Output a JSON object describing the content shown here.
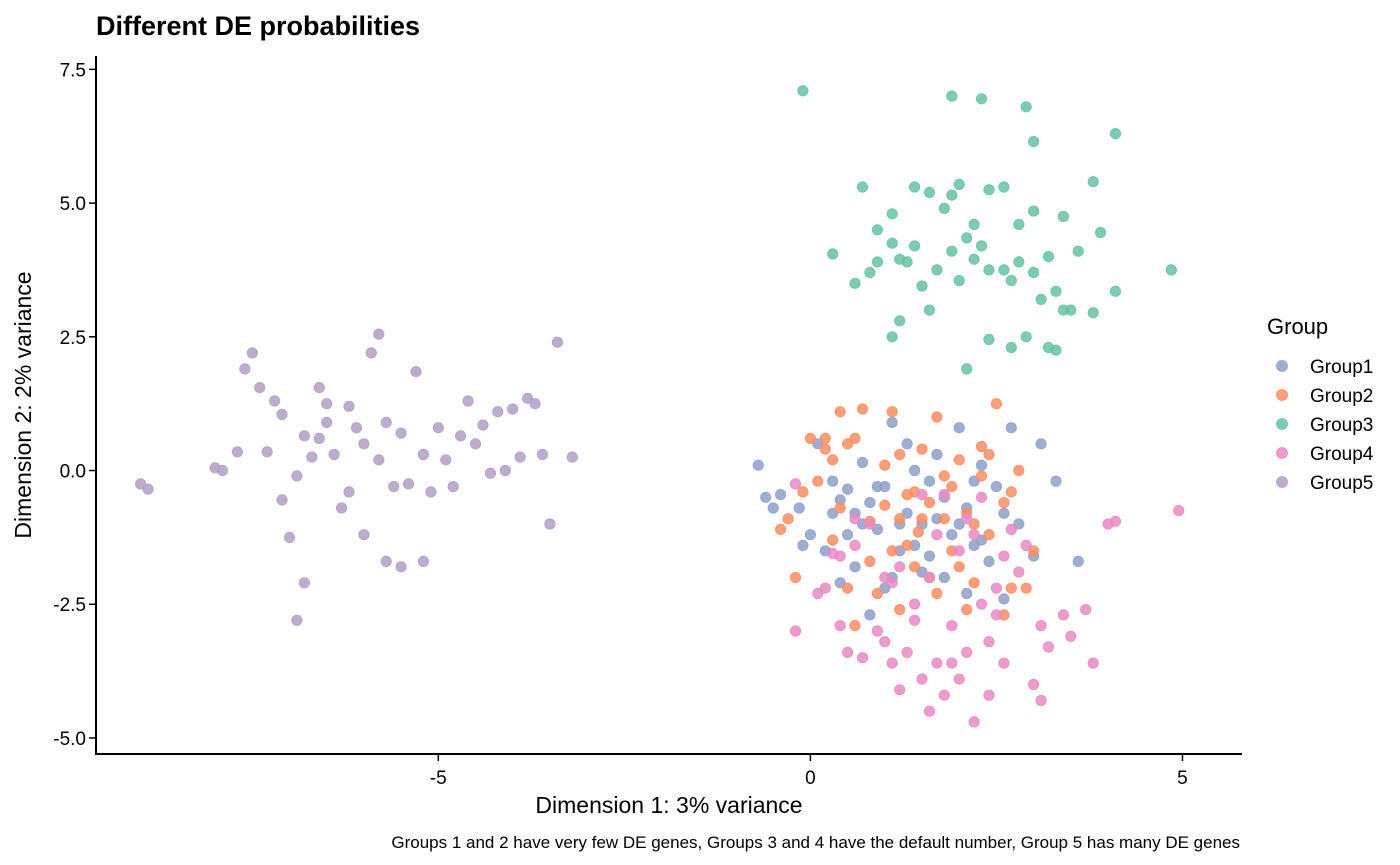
{
  "chart_data": {
    "type": "scatter",
    "title": "Different DE probabilities",
    "xlabel": "Dimension 1: 3% variance",
    "ylabel": "Dimension 2: 2% variance",
    "caption": "Groups 1 and 2 have very few DE genes, Groups 3 and 4 have the default number, Group 5 has many DE genes",
    "xlim": [
      -9.6,
      5.8
    ],
    "ylim": [
      -5.3,
      7.75
    ],
    "x_ticks": [
      -5,
      0,
      5
    ],
    "x_tick_labels": [
      "-5",
      "0",
      "5"
    ],
    "y_ticks": [
      -5,
      -2.5,
      0,
      2.5,
      5,
      7.5
    ],
    "y_tick_labels": [
      "-5.0",
      "-2.5",
      "0.0",
      "2.5",
      "5.0",
      "7.5"
    ],
    "grid": false,
    "legend_title": "Group",
    "legend_position": "right",
    "series": [
      {
        "name": "Group1",
        "color": "#8DA0CB",
        "points": [
          [
            -0.7,
            0.1
          ],
          [
            -0.5,
            -0.7
          ],
          [
            -0.4,
            -0.45
          ],
          [
            -0.15,
            -0.7
          ],
          [
            0.1,
            0.5
          ],
          [
            0.3,
            -0.2
          ],
          [
            0.4,
            -0.55
          ],
          [
            0.5,
            -1.2
          ],
          [
            0.6,
            -0.8
          ],
          [
            0.7,
            0.15
          ],
          [
            0.8,
            -0.6
          ],
          [
            0.9,
            -1.1
          ],
          [
            1.0,
            -0.3
          ],
          [
            1.1,
            0.9
          ],
          [
            1.2,
            -1.5
          ],
          [
            1.3,
            -0.8
          ],
          [
            1.4,
            0.0
          ],
          [
            1.5,
            -1.0
          ],
          [
            1.6,
            -1.6
          ],
          [
            1.7,
            0.3
          ],
          [
            1.8,
            -0.5
          ],
          [
            1.9,
            -1.2
          ],
          [
            2.0,
            0.8
          ],
          [
            2.1,
            -0.7
          ],
          [
            2.2,
            -1.4
          ],
          [
            2.3,
            0.1
          ],
          [
            2.4,
            -1.7
          ],
          [
            2.5,
            -0.3
          ],
          [
            2.6,
            -2.4
          ],
          [
            2.7,
            0.8
          ],
          [
            2.8,
            -1.0
          ],
          [
            3.0,
            -1.6
          ],
          [
            3.1,
            0.5
          ],
          [
            3.3,
            -0.2
          ],
          [
            3.6,
            -1.7
          ],
          [
            0.2,
            -1.5
          ],
          [
            0.4,
            -2.1
          ],
          [
            0.6,
            -1.8
          ],
          [
            0.8,
            -2.7
          ],
          [
            1.0,
            -2.2
          ],
          [
            1.2,
            -1.0
          ],
          [
            1.4,
            -1.4
          ],
          [
            1.6,
            -0.2
          ],
          [
            1.8,
            -2.0
          ],
          [
            2.0,
            -1.0
          ],
          [
            2.2,
            -0.2
          ],
          [
            -0.6,
            -0.5
          ],
          [
            0.0,
            -1.2
          ],
          [
            0.3,
            -0.8
          ],
          [
            0.9,
            -0.3
          ],
          [
            1.3,
            0.5
          ],
          [
            1.7,
            -0.9
          ],
          [
            2.1,
            -2.3
          ],
          [
            2.6,
            -0.8
          ],
          [
            0.5,
            -0.35
          ],
          [
            1.1,
            -2.0
          ],
          [
            1.5,
            -1.9
          ],
          [
            2.3,
            -1.3
          ],
          [
            0.7,
            -1.0
          ],
          [
            -0.1,
            -1.4
          ]
        ]
      },
      {
        "name": "Group2",
        "color": "#FC8D62",
        "points": [
          [
            -0.4,
            -1.1
          ],
          [
            -0.3,
            -0.9
          ],
          [
            -0.1,
            -0.4
          ],
          [
            0.0,
            0.6
          ],
          [
            0.2,
            0.6
          ],
          [
            0.4,
            1.1
          ],
          [
            0.5,
            0.5
          ],
          [
            0.7,
            1.15
          ],
          [
            0.8,
            -0.95
          ],
          [
            1.0,
            0.1
          ],
          [
            1.1,
            1.1
          ],
          [
            1.2,
            -0.9
          ],
          [
            1.3,
            -1.4
          ],
          [
            1.4,
            -0.4
          ],
          [
            1.5,
            0.4
          ],
          [
            1.6,
            -2.0
          ],
          [
            1.7,
            1.0
          ],
          [
            1.8,
            -0.1
          ],
          [
            1.9,
            -1.5
          ],
          [
            2.0,
            0.2
          ],
          [
            2.1,
            -0.8
          ],
          [
            2.2,
            -2.1
          ],
          [
            2.3,
            0.45
          ],
          [
            2.4,
            -1.2
          ],
          [
            2.5,
            1.25
          ],
          [
            2.6,
            -0.6
          ],
          [
            2.7,
            -2.2
          ],
          [
            2.8,
            0.0
          ],
          [
            3.0,
            -1.5
          ],
          [
            -0.2,
            -2.0
          ],
          [
            0.3,
            -1.3
          ],
          [
            0.5,
            -2.2
          ],
          [
            0.6,
            -2.9
          ],
          [
            0.9,
            -2.3
          ],
          [
            1.1,
            -1.5
          ],
          [
            1.2,
            -2.6
          ],
          [
            1.4,
            -1.8
          ],
          [
            1.5,
            -0.9
          ],
          [
            1.7,
            -2.3
          ],
          [
            1.8,
            -0.9
          ],
          [
            2.0,
            -1.8
          ],
          [
            2.2,
            -1.0
          ],
          [
            2.4,
            0.3
          ],
          [
            2.6,
            -2.7
          ],
          [
            2.9,
            -2.2
          ],
          [
            0.1,
            -0.2
          ],
          [
            0.4,
            -0.7
          ],
          [
            0.8,
            -1.7
          ],
          [
            1.0,
            -0.65
          ],
          [
            1.3,
            -0.45
          ],
          [
            1.6,
            -0.6
          ],
          [
            1.9,
            -0.3
          ],
          [
            2.1,
            -2.6
          ],
          [
            0.2,
            0.4
          ],
          [
            0.6,
            0.6
          ],
          [
            1.2,
            0.3
          ],
          [
            2.3,
            -0.1
          ],
          [
            2.7,
            -0.4
          ],
          [
            0.3,
            0.2
          ],
          [
            1.45,
            -1.15
          ]
        ]
      },
      {
        "name": "Group3",
        "color": "#66C2A5",
        "points": [
          [
            -0.1,
            7.1
          ],
          [
            1.9,
            7.0
          ],
          [
            2.3,
            6.95
          ],
          [
            2.9,
            6.8
          ],
          [
            3.0,
            6.15
          ],
          [
            4.1,
            6.3
          ],
          [
            0.7,
            5.3
          ],
          [
            1.1,
            4.8
          ],
          [
            1.4,
            5.3
          ],
          [
            1.6,
            5.2
          ],
          [
            1.8,
            4.9
          ],
          [
            1.9,
            5.15
          ],
          [
            2.0,
            5.35
          ],
          [
            2.2,
            4.6
          ],
          [
            2.4,
            5.25
          ],
          [
            2.6,
            5.3
          ],
          [
            2.8,
            4.6
          ],
          [
            3.0,
            4.85
          ],
          [
            3.4,
            4.75
          ],
          [
            3.8,
            5.4
          ],
          [
            0.3,
            4.05
          ],
          [
            0.6,
            3.5
          ],
          [
            0.8,
            3.7
          ],
          [
            0.9,
            3.9
          ],
          [
            1.1,
            4.25
          ],
          [
            1.2,
            3.95
          ],
          [
            1.3,
            3.9
          ],
          [
            1.4,
            4.2
          ],
          [
            1.5,
            3.45
          ],
          [
            1.7,
            3.75
          ],
          [
            1.9,
            4.1
          ],
          [
            2.0,
            3.55
          ],
          [
            2.1,
            4.35
          ],
          [
            2.2,
            3.95
          ],
          [
            2.3,
            4.2
          ],
          [
            2.4,
            3.75
          ],
          [
            2.6,
            3.75
          ],
          [
            2.7,
            3.55
          ],
          [
            2.8,
            3.9
          ],
          [
            3.0,
            3.7
          ],
          [
            3.1,
            3.2
          ],
          [
            3.2,
            4.0
          ],
          [
            3.3,
            3.35
          ],
          [
            3.4,
            3.0
          ],
          [
            3.5,
            3.0
          ],
          [
            3.6,
            4.1
          ],
          [
            3.8,
            2.95
          ],
          [
            3.9,
            4.45
          ],
          [
            4.1,
            3.35
          ],
          [
            4.85,
            3.75
          ],
          [
            1.2,
            2.8
          ],
          [
            1.6,
            3.0
          ],
          [
            2.1,
            1.9
          ],
          [
            2.4,
            2.45
          ],
          [
            2.7,
            2.3
          ],
          [
            2.9,
            2.5
          ],
          [
            3.2,
            2.3
          ],
          [
            3.3,
            2.25
          ],
          [
            1.1,
            2.5
          ],
          [
            0.9,
            4.5
          ]
        ]
      },
      {
        "name": "Group4",
        "color": "#E78AC3",
        "points": [
          [
            -0.2,
            -0.25
          ],
          [
            0.1,
            -2.3
          ],
          [
            0.4,
            -1.6
          ],
          [
            0.6,
            -1.4
          ],
          [
            0.8,
            -1.0
          ],
          [
            1.0,
            -3.2
          ],
          [
            1.1,
            -2.1
          ],
          [
            1.2,
            -4.1
          ],
          [
            1.3,
            -3.4
          ],
          [
            1.4,
            -2.8
          ],
          [
            1.5,
            -3.9
          ],
          [
            1.6,
            -4.5
          ],
          [
            1.7,
            -3.6
          ],
          [
            1.8,
            -4.2
          ],
          [
            1.9,
            -2.9
          ],
          [
            2.0,
            -3.9
          ],
          [
            2.1,
            -3.4
          ],
          [
            2.2,
            -4.7
          ],
          [
            2.3,
            -2.5
          ],
          [
            2.4,
            -3.2
          ],
          [
            2.5,
            -2.7
          ],
          [
            2.6,
            -3.6
          ],
          [
            2.7,
            -1.1
          ],
          [
            2.8,
            -1.9
          ],
          [
            3.0,
            -4.0
          ],
          [
            3.1,
            -4.3
          ],
          [
            3.2,
            -3.3
          ],
          [
            3.4,
            -2.7
          ],
          [
            3.7,
            -2.6
          ],
          [
            3.8,
            -3.6
          ],
          [
            4.0,
            -1.0
          ],
          [
            4.1,
            -0.95
          ],
          [
            4.95,
            -0.75
          ],
          [
            -0.2,
            -3.0
          ],
          [
            0.2,
            -2.2
          ],
          [
            0.5,
            -3.4
          ],
          [
            0.7,
            -3.5
          ],
          [
            0.9,
            -3.0
          ],
          [
            1.0,
            -2.0
          ],
          [
            1.2,
            -1.8
          ],
          [
            1.4,
            -2.5
          ],
          [
            1.6,
            -2.0
          ],
          [
            1.7,
            -1.2
          ],
          [
            1.8,
            -0.45
          ],
          [
            2.0,
            -1.5
          ],
          [
            2.2,
            -1.2
          ],
          [
            2.3,
            -0.5
          ],
          [
            2.6,
            -1.6
          ],
          [
            2.9,
            -1.4
          ],
          [
            3.1,
            -2.9
          ],
          [
            0.3,
            -1.55
          ],
          [
            0.6,
            -0.9
          ],
          [
            1.5,
            -0.45
          ],
          [
            2.1,
            -0.9
          ],
          [
            2.5,
            -2.2
          ],
          [
            1.1,
            -3.6
          ],
          [
            1.9,
            -3.6
          ],
          [
            2.4,
            -4.2
          ],
          [
            0.4,
            -2.9
          ],
          [
            3.5,
            -3.1
          ]
        ]
      },
      {
        "name": "Group5",
        "color": "#B39DC7",
        "points": [
          [
            -9.0,
            -0.25
          ],
          [
            -8.9,
            -0.35
          ],
          [
            -8.0,
            0.05
          ],
          [
            -7.9,
            0.0
          ],
          [
            -7.7,
            0.35
          ],
          [
            -7.6,
            1.9
          ],
          [
            -7.5,
            2.2
          ],
          [
            -7.4,
            1.55
          ],
          [
            -7.3,
            0.35
          ],
          [
            -7.2,
            1.3
          ],
          [
            -7.1,
            -0.55
          ],
          [
            -7.0,
            -1.25
          ],
          [
            -6.9,
            -0.1
          ],
          [
            -6.8,
            0.65
          ],
          [
            -6.7,
            0.25
          ],
          [
            -6.6,
            1.55
          ],
          [
            -6.5,
            1.25
          ],
          [
            -6.4,
            0.3
          ],
          [
            -6.3,
            -0.7
          ],
          [
            -6.2,
            1.2
          ],
          [
            -6.1,
            0.8
          ],
          [
            -6.0,
            0.5
          ],
          [
            -5.9,
            2.2
          ],
          [
            -5.8,
            0.2
          ],
          [
            -5.7,
            0.9
          ],
          [
            -5.6,
            -0.3
          ],
          [
            -5.5,
            0.7
          ],
          [
            -5.4,
            -0.25
          ],
          [
            -5.3,
            1.85
          ],
          [
            -5.2,
            0.3
          ],
          [
            -5.1,
            -0.4
          ],
          [
            -5.0,
            0.8
          ],
          [
            -4.9,
            0.2
          ],
          [
            -4.8,
            -0.3
          ],
          [
            -4.7,
            0.65
          ],
          [
            -4.6,
            1.3
          ],
          [
            -4.5,
            0.5
          ],
          [
            -4.4,
            0.85
          ],
          [
            -4.3,
            -0.05
          ],
          [
            -4.2,
            1.1
          ],
          [
            -4.1,
            0.0
          ],
          [
            -4.0,
            1.15
          ],
          [
            -3.9,
            0.25
          ],
          [
            -3.8,
            1.35
          ],
          [
            -3.7,
            1.25
          ],
          [
            -3.6,
            0.3
          ],
          [
            -3.5,
            -1.0
          ],
          [
            -3.4,
            2.4
          ],
          [
            -3.2,
            0.25
          ],
          [
            -6.8,
            -2.1
          ],
          [
            -6.9,
            -2.8
          ],
          [
            -6.0,
            -1.2
          ],
          [
            -5.7,
            -1.7
          ],
          [
            -5.5,
            -1.8
          ],
          [
            -5.2,
            -1.7
          ],
          [
            -6.5,
            0.9
          ],
          [
            -7.1,
            1.05
          ],
          [
            -6.6,
            0.6
          ],
          [
            -5.8,
            2.55
          ],
          [
            -6.2,
            -0.4
          ]
        ]
      }
    ]
  }
}
